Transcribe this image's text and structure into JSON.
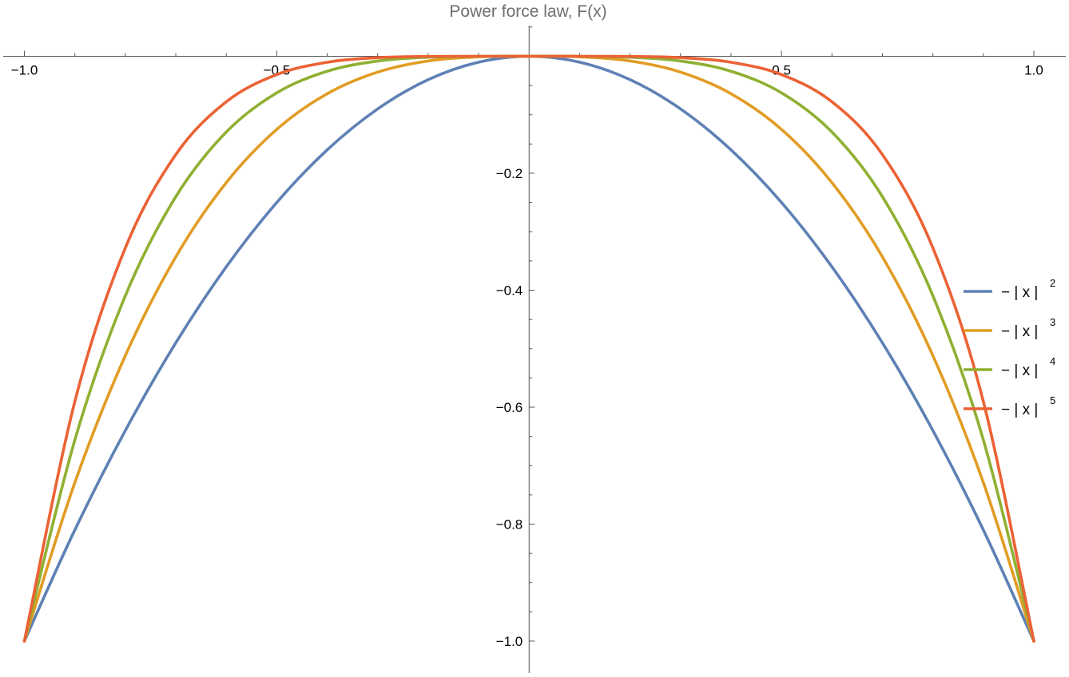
{
  "chart_data": {
    "type": "line",
    "title": "Power force law, F(x)",
    "xlabel": "",
    "ylabel": "",
    "xlim": [
      -1.0,
      1.0
    ],
    "ylim": [
      -1.06,
      0.06
    ],
    "x_ticks": [
      -1.0,
      -0.5,
      0.5,
      1.0
    ],
    "x_tick_labels": [
      "−1.0",
      "−0.5",
      "0.5",
      "1.0"
    ],
    "y_ticks": [
      -0.2,
      -0.4,
      -0.6,
      -0.8,
      -1.0
    ],
    "y_tick_labels": [
      "−0.2",
      "−0.4",
      "−0.6",
      "−0.8",
      "−1.0"
    ],
    "grid": false,
    "legend_position": "right",
    "x": [
      -1.0,
      -0.9,
      -0.8,
      -0.7,
      -0.6,
      -0.5,
      -0.4,
      -0.3,
      -0.2,
      -0.1,
      0.0,
      0.1,
      0.2,
      0.3,
      0.4,
      0.5,
      0.6,
      0.7,
      0.8,
      0.9,
      1.0
    ],
    "series": [
      {
        "legend_base": "− | x |",
        "legend_exponent": "2",
        "color": "#5e81b5",
        "values": [
          -1.0,
          -0.81,
          -0.64,
          -0.49,
          -0.36,
          -0.25,
          -0.16,
          -0.09,
          -0.04,
          -0.01,
          0.0,
          -0.01,
          -0.04,
          -0.09,
          -0.16,
          -0.25,
          -0.36,
          -0.49,
          -0.64,
          -0.81,
          -1.0
        ]
      },
      {
        "legend_base": "− | x |",
        "legend_exponent": "3",
        "color": "#e19c24",
        "values": [
          -1.0,
          -0.729,
          -0.512,
          -0.343,
          -0.216,
          -0.125,
          -0.064,
          -0.027,
          -0.008,
          -0.001,
          0.0,
          -0.001,
          -0.008,
          -0.027,
          -0.064,
          -0.125,
          -0.216,
          -0.343,
          -0.512,
          -0.729,
          -1.0
        ]
      },
      {
        "legend_base": "− | x |",
        "legend_exponent": "4",
        "color": "#8fb032",
        "values": [
          -1.0,
          -0.6561,
          -0.4096,
          -0.2401,
          -0.1296,
          -0.0625,
          -0.0256,
          -0.0081,
          -0.0016,
          -0.0001,
          0.0,
          -0.0001,
          -0.0016,
          -0.0081,
          -0.0256,
          -0.0625,
          -0.1296,
          -0.2401,
          -0.4096,
          -0.6561,
          -1.0
        ]
      },
      {
        "legend_base": "− | x |",
        "legend_exponent": "5",
        "color": "#eb6235",
        "values": [
          -1.0,
          -0.5905,
          -0.3277,
          -0.1681,
          -0.0778,
          -0.0313,
          -0.0102,
          -0.0024,
          -0.0003,
          0.0,
          0.0,
          0.0,
          -0.0003,
          -0.0024,
          -0.0102,
          -0.0313,
          -0.0778,
          -0.1681,
          -0.3277,
          -0.5905,
          -1.0
        ]
      }
    ]
  }
}
